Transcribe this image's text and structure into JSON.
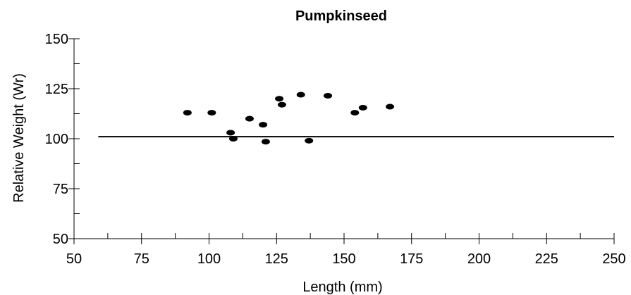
{
  "chart_data": {
    "type": "scatter",
    "title": "Pumpkinseed",
    "xlabel": "Length (mm)",
    "ylabel": "Relative Weight (Wr)",
    "xlim": [
      50,
      250
    ],
    "ylim": [
      50,
      150
    ],
    "xticks": [
      50,
      75,
      100,
      125,
      150,
      175,
      200,
      225,
      250
    ],
    "xtick_labels": [
      "50",
      "75",
      "100",
      "125",
      "150",
      "175",
      "200",
      "225",
      "250"
    ],
    "yticks": [
      50,
      75,
      100,
      125,
      150
    ],
    "ytick_labels": [
      "50",
      "75",
      "100",
      "125",
      "150"
    ],
    "y_minor_ticks": [
      62.5,
      87.5,
      112.5,
      137.5
    ],
    "x_minor_ticks": [
      62.5,
      87.5,
      112.5,
      137.5,
      162.5,
      187.5,
      212.5,
      237.5
    ],
    "grid": false,
    "legend": "none",
    "series": [
      {
        "points": [
          {
            "x": 92,
            "y": 113
          },
          {
            "x": 101,
            "y": 113
          },
          {
            "x": 108,
            "y": 103
          },
          {
            "x": 109,
            "y": 100
          },
          {
            "x": 115,
            "y": 110
          },
          {
            "x": 120,
            "y": 107
          },
          {
            "x": 121,
            "y": 98.5
          },
          {
            "x": 126,
            "y": 120
          },
          {
            "x": 127,
            "y": 117
          },
          {
            "x": 134,
            "y": 122
          },
          {
            "x": 137,
            "y": 99
          },
          {
            "x": 144,
            "y": 121.5
          },
          {
            "x": 154,
            "y": 113
          },
          {
            "x": 157,
            "y": 115.5
          },
          {
            "x": 167,
            "y": 116
          }
        ]
      }
    ],
    "reference_line": {
      "y": 101,
      "x_start": 59,
      "x_end": 250
    }
  }
}
